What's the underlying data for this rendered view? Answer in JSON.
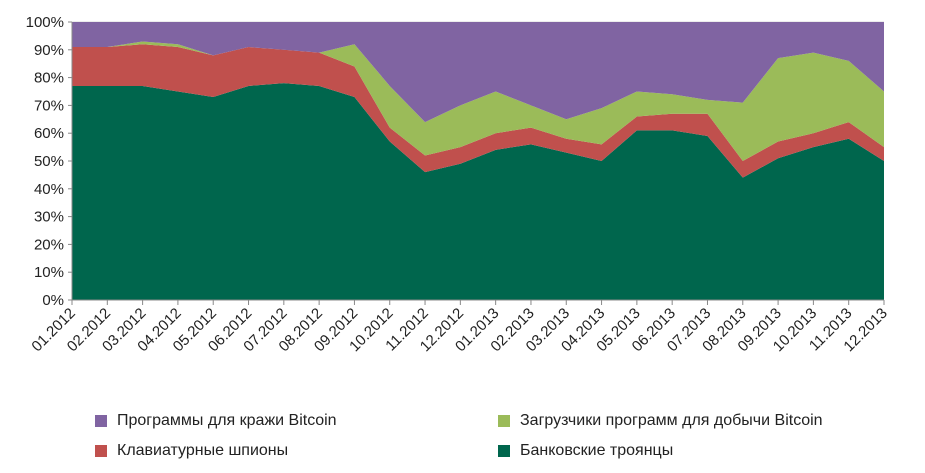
{
  "chart_data": {
    "type": "area",
    "stacked": true,
    "percent": true,
    "x": [
      "01.2012",
      "02.2012",
      "03.2012",
      "04.2012",
      "05.2012",
      "06.2012",
      "07.2012",
      "08.2012",
      "09.2012",
      "10.2012",
      "11.2012",
      "12.2012",
      "01.2013",
      "02.2013",
      "03.2013",
      "04.2013",
      "05.2013",
      "06.2013",
      "07.2013",
      "08.2013",
      "09.2013",
      "10.2013",
      "11.2013",
      "12.2013"
    ],
    "y_ticks": [
      "0%",
      "10%",
      "20%",
      "30%",
      "40%",
      "50%",
      "60%",
      "70%",
      "80%",
      "90%",
      "100%"
    ],
    "ylim": [
      0,
      100
    ],
    "series": [
      {
        "name": "Банковские троянцы",
        "color": "#00664d",
        "values": [
          77,
          77,
          77,
          75,
          73,
          77,
          78,
          77,
          73,
          57,
          46,
          49,
          54,
          56,
          53,
          50,
          61,
          61,
          59,
          44,
          51,
          55,
          58,
          50
        ]
      },
      {
        "name": "Клавиатурные шпионы",
        "color": "#c0504d",
        "values": [
          14,
          14,
          15,
          16,
          15,
          14,
          12,
          12,
          11,
          5,
          6,
          6,
          6,
          6,
          5,
          6,
          5,
          6,
          8,
          6,
          6,
          5,
          6,
          5
        ]
      },
      {
        "name": "Загрузчики программ для добычи Bitcoin",
        "color": "#9bbb59",
        "values": [
          0,
          0,
          1,
          1,
          0,
          0,
          0,
          0,
          8,
          15,
          12,
          15,
          15,
          8,
          7,
          13,
          9,
          7,
          5,
          21,
          30,
          29,
          22,
          20
        ]
      },
      {
        "name": "Программы для кражи Bitcoin",
        "color": "#8064a2",
        "values": [
          9,
          9,
          7,
          8,
          12,
          9,
          10,
          11,
          8,
          23,
          36,
          30,
          25,
          30,
          35,
          31,
          25,
          26,
          28,
          29,
          13,
          11,
          14,
          25
        ]
      }
    ]
  },
  "legend": {
    "items": [
      {
        "label": "Программы для кражи Bitcoin",
        "color": "#8064a2"
      },
      {
        "label": "Загрузчики программ для добычи Bitcoin",
        "color": "#9bbb59"
      },
      {
        "label": "Клавиатурные шпионы",
        "color": "#c0504d"
      },
      {
        "label": "Банковские троянцы",
        "color": "#00664d"
      }
    ]
  }
}
